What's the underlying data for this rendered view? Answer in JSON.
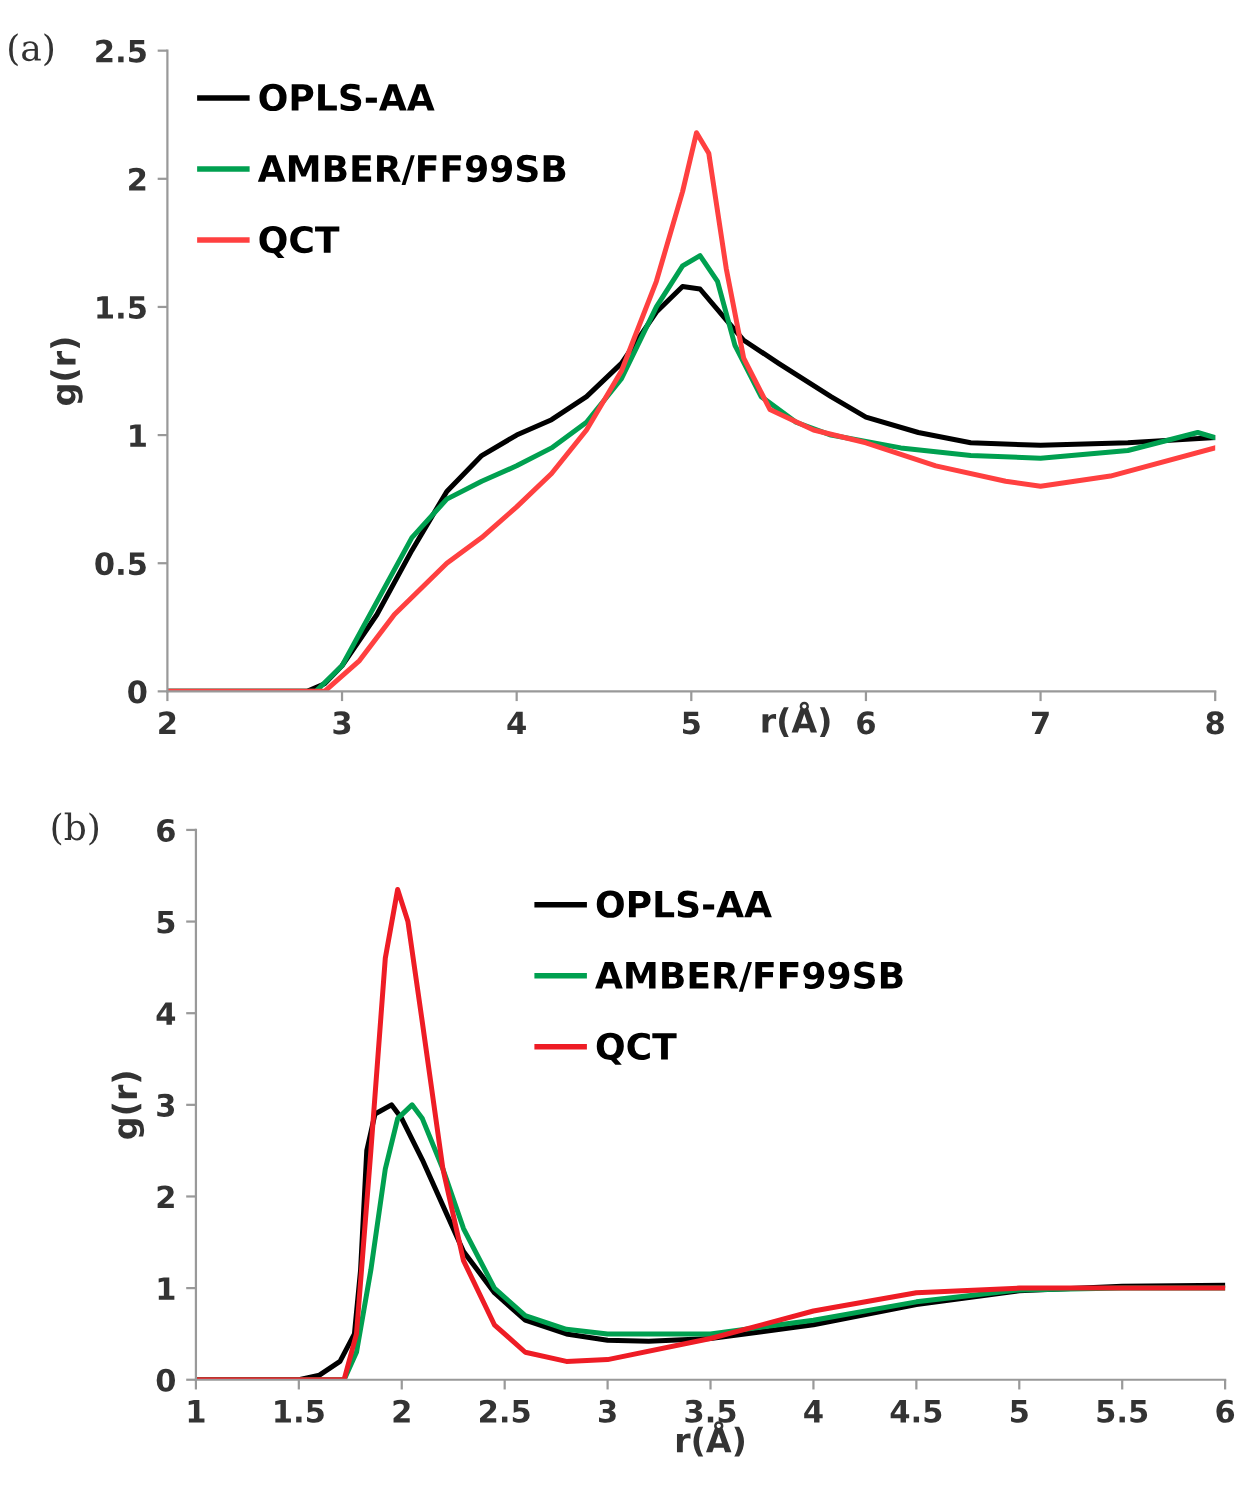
{
  "chart_data": [
    {
      "type": "line",
      "title": "(a)",
      "xlabel": "r(Å)",
      "ylabel": "g(r)",
      "xlim": [
        2,
        8
      ],
      "xticks": [
        2,
        3,
        4,
        5,
        6,
        7,
        8
      ],
      "ylim": [
        0,
        2.5
      ],
      "yticks": [
        0,
        0.5,
        1,
        1.5,
        2,
        2.5
      ],
      "grid": false,
      "legend": "top left",
      "line_style": "solid",
      "series": [
        {
          "name": "OPLS-AA",
          "color": "#000000",
          "x": [
            2,
            2.6,
            2.8,
            2.9,
            3.0,
            3.2,
            3.4,
            3.6,
            3.8,
            4.0,
            4.2,
            4.4,
            4.6,
            4.8,
            4.95,
            5.05,
            5.2,
            5.3,
            5.5,
            5.8,
            6.0,
            6.3,
            6.6,
            7.0,
            7.5,
            8.0
          ],
          "values": [
            0,
            0,
            0,
            0.03,
            0.1,
            0.3,
            0.55,
            0.78,
            0.92,
            1.0,
            1.06,
            1.15,
            1.28,
            1.48,
            1.58,
            1.57,
            1.45,
            1.37,
            1.28,
            1.15,
            1.07,
            1.01,
            0.97,
            0.96,
            0.97,
            0.99
          ]
        },
        {
          "name": "AMBER/FF99SB",
          "color": "#00a050",
          "x": [
            2,
            2.85,
            3.0,
            3.2,
            3.4,
            3.6,
            3.8,
            4.0,
            4.2,
            4.4,
            4.6,
            4.8,
            4.95,
            5.05,
            5.15,
            5.25,
            5.4,
            5.6,
            5.8,
            6.2,
            6.6,
            7.0,
            7.5,
            7.9,
            8.0
          ],
          "values": [
            0,
            0,
            0.1,
            0.35,
            0.6,
            0.75,
            0.82,
            0.88,
            0.95,
            1.05,
            1.22,
            1.5,
            1.66,
            1.7,
            1.6,
            1.35,
            1.15,
            1.05,
            1.0,
            0.95,
            0.92,
            0.91,
            0.94,
            1.01,
            0.99
          ]
        },
        {
          "name": "QCT",
          "color": "#ff4040",
          "x": [
            2,
            2.9,
            3.1,
            3.3,
            3.6,
            3.8,
            4.0,
            4.2,
            4.4,
            4.6,
            4.8,
            4.95,
            5.03,
            5.1,
            5.2,
            5.3,
            5.45,
            5.7,
            6.0,
            6.4,
            6.8,
            7.0,
            7.4,
            8.0
          ],
          "values": [
            0,
            0,
            0.12,
            0.3,
            0.5,
            0.6,
            0.72,
            0.85,
            1.02,
            1.25,
            1.6,
            1.95,
            2.18,
            2.1,
            1.65,
            1.3,
            1.1,
            1.02,
            0.97,
            0.88,
            0.82,
            0.8,
            0.84,
            0.95
          ]
        }
      ]
    },
    {
      "type": "line",
      "title": "(b)",
      "xlabel": "r(Å)",
      "ylabel": "g(r)",
      "xlim": [
        1,
        6
      ],
      "xticks": [
        1,
        1.5,
        2,
        2.5,
        3,
        3.5,
        4,
        4.5,
        5,
        5.5,
        6
      ],
      "ylim": [
        0,
        6
      ],
      "yticks": [
        0,
        1,
        2,
        3,
        4,
        5,
        6
      ],
      "grid": false,
      "legend": "top",
      "line_style": "solid",
      "series": [
        {
          "name": "OPLS-AA",
          "color": "#000000",
          "x": [
            1,
            1.5,
            1.6,
            1.7,
            1.77,
            1.8,
            1.83,
            1.87,
            1.95,
            2.0,
            2.1,
            2.2,
            2.3,
            2.45,
            2.6,
            2.8,
            3.0,
            3.2,
            3.5,
            4.0,
            4.5,
            5.0,
            5.5,
            6.0
          ],
          "values": [
            0,
            0,
            0.05,
            0.2,
            0.5,
            1.2,
            2.5,
            2.9,
            3.0,
            2.85,
            2.4,
            1.9,
            1.4,
            0.95,
            0.65,
            0.5,
            0.43,
            0.42,
            0.45,
            0.6,
            0.82,
            0.97,
            1.02,
            1.03
          ]
        },
        {
          "name": "AMBER/FF99SB",
          "color": "#00a050",
          "x": [
            1,
            1.72,
            1.78,
            1.85,
            1.92,
            1.98,
            2.05,
            2.1,
            2.2,
            2.3,
            2.45,
            2.6,
            2.8,
            3.0,
            3.5,
            4.0,
            4.5,
            5.0,
            5.5,
            6.0
          ],
          "values": [
            0,
            0,
            0.3,
            1.2,
            2.3,
            2.85,
            3.0,
            2.85,
            2.3,
            1.65,
            1.0,
            0.7,
            0.55,
            0.5,
            0.5,
            0.65,
            0.85,
            0.98,
            1.0,
            1.0
          ]
        },
        {
          "name": "QCT",
          "color": "#ee1c25",
          "x": [
            1,
            1.72,
            1.78,
            1.85,
            1.92,
            1.98,
            2.03,
            2.1,
            2.2,
            2.3,
            2.45,
            2.6,
            2.8,
            3.0,
            3.5,
            4.0,
            4.5,
            5.0,
            6.0
          ],
          "values": [
            0,
            0,
            0.5,
            2.5,
            4.6,
            5.35,
            5.0,
            3.9,
            2.3,
            1.3,
            0.6,
            0.3,
            0.2,
            0.22,
            0.45,
            0.75,
            0.95,
            1.0,
            1.0
          ]
        }
      ]
    }
  ]
}
